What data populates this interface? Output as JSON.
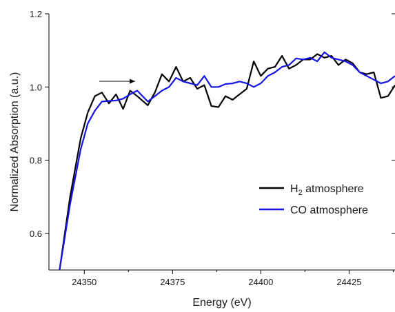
{
  "chart_data": {
    "type": "line",
    "title": "",
    "xlabel": "Energy (eV)",
    "ylabel": "Normalized Absorption (a.u.)",
    "xlim": [
      24340,
      24438
    ],
    "ylim": [
      0.5,
      1.2
    ],
    "x_ticks": [
      24350,
      24375,
      24400,
      24425
    ],
    "x_tick_labels": [
      "24350",
      "24375",
      "24400",
      "24425"
    ],
    "y_ticks": [
      0.6,
      0.8,
      1.0,
      1.2
    ],
    "y_tick_labels": [
      "0.6",
      "0.8",
      "1.0",
      "1.2"
    ],
    "grid": false,
    "legend_position": "lower-right",
    "legend_entries": [
      "H2 atmosphere",
      "CO atmosphere"
    ],
    "annotation": "arrow pointing right",
    "series": [
      {
        "name": "H2 atmosphere",
        "name_base": "H",
        "name_sub": "2",
        "name_rest": " atmosphere",
        "color": "#000000",
        "x": [
          24343,
          24346,
          24349,
          24351,
          24353,
          24355,
          24357,
          24359,
          24361,
          24363,
          24365,
          24368,
          24370,
          24372,
          24374,
          24376,
          24378,
          24380,
          24382,
          24384,
          24386,
          24388,
          24390,
          24392,
          24394,
          24396,
          24398,
          24400,
          24402,
          24404,
          24406,
          24408,
          24410,
          24412,
          24414,
          24416,
          24418,
          24420,
          24422,
          24424,
          24426,
          24428,
          24430,
          24432,
          24434,
          24436,
          24438
        ],
        "y": [
          0.5,
          0.7,
          0.86,
          0.93,
          0.975,
          0.985,
          0.955,
          0.98,
          0.94,
          0.99,
          0.975,
          0.95,
          0.985,
          1.035,
          1.015,
          1.055,
          1.015,
          1.025,
          0.995,
          1.005,
          0.948,
          0.945,
          0.975,
          0.965,
          0.98,
          0.995,
          1.07,
          1.03,
          1.05,
          1.055,
          1.085,
          1.05,
          1.06,
          1.075,
          1.075,
          1.09,
          1.08,
          1.085,
          1.06,
          1.075,
          1.065,
          1.04,
          1.035,
          1.04,
          0.97,
          0.975,
          1.005
        ]
      },
      {
        "name": "CO atmosphere",
        "color": "#1414e6",
        "x": [
          24343,
          24346,
          24349,
          24351,
          24353,
          24355,
          24357,
          24359,
          24361,
          24363,
          24365,
          24368,
          24370,
          24372,
          24374,
          24376,
          24378,
          24380,
          24382,
          24384,
          24386,
          24388,
          24390,
          24392,
          24394,
          24396,
          24398,
          24400,
          24402,
          24404,
          24406,
          24408,
          24410,
          24412,
          24414,
          24416,
          24418,
          24420,
          24422,
          24424,
          24426,
          24428,
          24430,
          24432,
          24434,
          24436,
          24438
        ],
        "y": [
          0.5,
          0.68,
          0.83,
          0.9,
          0.935,
          0.96,
          0.962,
          0.963,
          0.968,
          0.98,
          0.99,
          0.96,
          0.975,
          0.99,
          1.0,
          1.025,
          1.015,
          1.01,
          1.005,
          1.03,
          1.0,
          1.0,
          1.008,
          1.01,
          1.015,
          1.01,
          1.0,
          1.01,
          1.03,
          1.04,
          1.055,
          1.06,
          1.078,
          1.075,
          1.08,
          1.07,
          1.095,
          1.08,
          1.075,
          1.07,
          1.06,
          1.04,
          1.03,
          1.02,
          1.01,
          1.015,
          1.03
        ]
      }
    ]
  }
}
